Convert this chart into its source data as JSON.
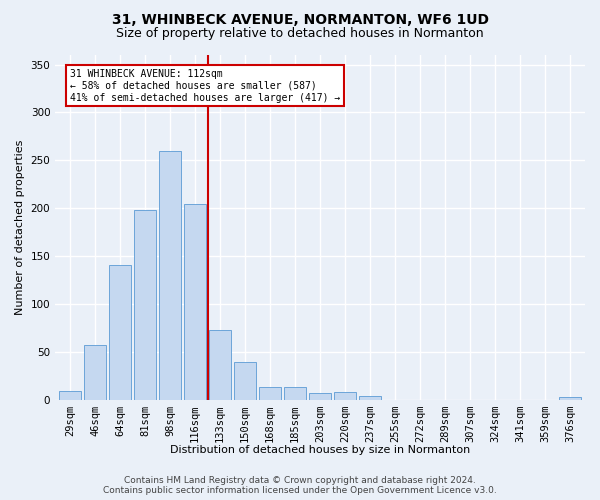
{
  "title": "31, WHINBECK AVENUE, NORMANTON, WF6 1UD",
  "subtitle": "Size of property relative to detached houses in Normanton",
  "xlabel": "Distribution of detached houses by size in Normanton",
  "ylabel": "Number of detached properties",
  "bar_labels": [
    "29sqm",
    "46sqm",
    "64sqm",
    "81sqm",
    "98sqm",
    "116sqm",
    "133sqm",
    "150sqm",
    "168sqm",
    "185sqm",
    "203sqm",
    "220sqm",
    "237sqm",
    "255sqm",
    "272sqm",
    "289sqm",
    "307sqm",
    "324sqm",
    "341sqm",
    "359sqm",
    "376sqm"
  ],
  "bar_values": [
    9,
    57,
    141,
    198,
    260,
    204,
    73,
    40,
    13,
    13,
    7,
    8,
    4,
    0,
    0,
    0,
    0,
    0,
    0,
    0,
    3
  ],
  "bar_color": "#c5d8f0",
  "bar_edge_color": "#5b9bd5",
  "vline_x": 5.5,
  "vline_color": "#cc0000",
  "ylim": [
    0,
    360
  ],
  "yticks": [
    0,
    50,
    100,
    150,
    200,
    250,
    300,
    350
  ],
  "annotation_title": "31 WHINBECK AVENUE: 112sqm",
  "annotation_line1": "← 58% of detached houses are smaller (587)",
  "annotation_line2": "41% of semi-detached houses are larger (417) →",
  "footer1": "Contains HM Land Registry data © Crown copyright and database right 2024.",
  "footer2": "Contains public sector information licensed under the Open Government Licence v3.0.",
  "bg_color": "#eaf0f8",
  "plot_bg_color": "#eaf0f8",
  "grid_color": "#ffffff",
  "title_fontsize": 10,
  "subtitle_fontsize": 9,
  "label_fontsize": 8,
  "tick_fontsize": 7.5,
  "footer_fontsize": 6.5
}
